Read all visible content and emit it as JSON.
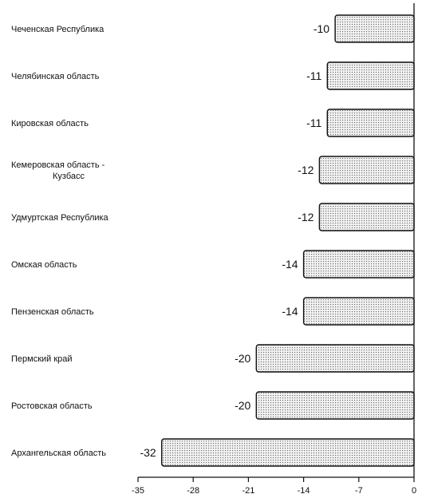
{
  "chart_data": {
    "type": "bar",
    "orientation": "horizontal",
    "title": "",
    "xlabel": "",
    "ylabel": "",
    "categories": [
      [
        "Чеченская Республика"
      ],
      [
        "Челябинская область"
      ],
      [
        "Кировская область"
      ],
      [
        "Кемеровская область -",
        "Кузбасс"
      ],
      [
        "Удмуртская Республика"
      ],
      [
        "Омская область"
      ],
      [
        "Пензенская область"
      ],
      [
        "Пермский край"
      ],
      [
        "Ростовская область"
      ],
      [
        "Архангельская область"
      ]
    ],
    "values": [
      -10,
      -11,
      -11,
      -12,
      -12,
      -14,
      -14,
      -20,
      -20,
      -32
    ],
    "value_labels": [
      "-10",
      "-11",
      "-11",
      "-12",
      "-12",
      "-14",
      "-14",
      "-20",
      "-20",
      "-32"
    ],
    "xlim": [
      -35,
      0
    ],
    "x_ticks": [
      -35,
      -28,
      -21,
      -14,
      -7,
      0
    ],
    "x_tick_labels": [
      "-35",
      "-28",
      "-21",
      "-14",
      "-7",
      "0"
    ],
    "grid": false,
    "legend": false,
    "colors": {
      "bar_fill": "#f0f0f0",
      "bar_dots": "#6a6a6a",
      "bar_stroke": "#111111",
      "axis": "#111111",
      "text": "#111111"
    }
  }
}
